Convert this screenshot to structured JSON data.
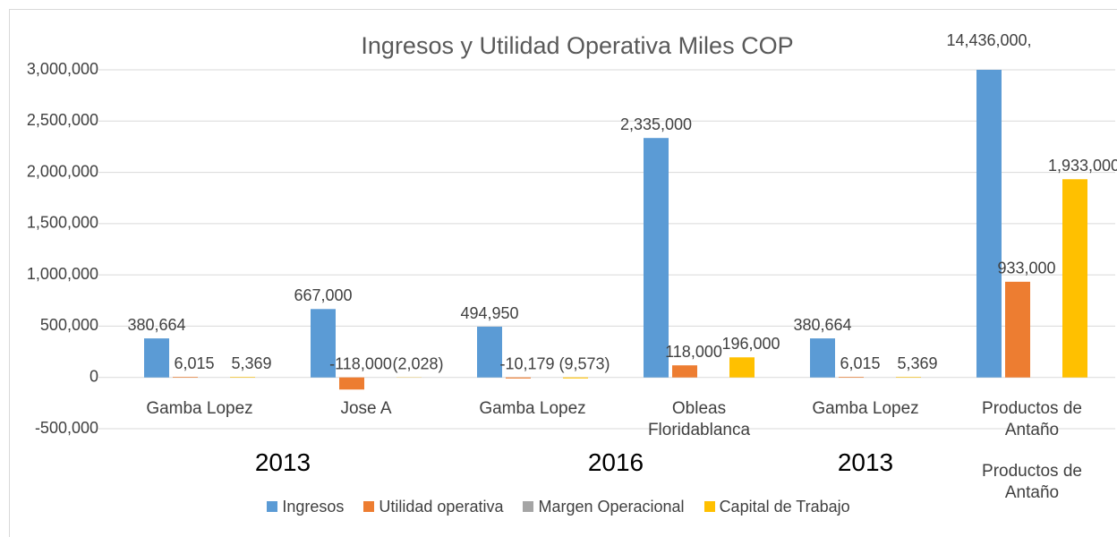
{
  "chart_data": {
    "type": "bar",
    "title": "Ingresos y Utilidad Operativa Miles COP",
    "categories": [
      "Gamba Lopez",
      "Jose A",
      "Gamba Lopez",
      "Obleas Floridablanca",
      "Gamba Lopez",
      "Productos de Antaño"
    ],
    "groups": [
      "2013",
      "2016",
      "2013",
      "Productos de Antaño"
    ],
    "series": [
      {
        "name": "Ingresos",
        "color": "#5b9bd5",
        "values": [
          380664,
          667000,
          494950,
          2335000,
          380664,
          14436000
        ],
        "value_labels": [
          "380,664",
          "667,000",
          "494,950",
          "2,335,000",
          "380,664",
          "14,436,000,"
        ]
      },
      {
        "name": "Utilidad operativa",
        "color": "#ed7d31",
        "values": [
          6015,
          -118000,
          -10179,
          118000,
          6015,
          933000
        ],
        "value_labels": [
          "6,015",
          "-118,000",
          "-10,179",
          "118,000",
          "6,015",
          "933,000"
        ]
      },
      {
        "name": "Margen Operacional",
        "color": "#a5a5a5",
        "values": [
          0,
          0,
          0,
          0,
          0,
          0
        ]
      },
      {
        "name": "Capital de Trabajo",
        "color": "#ffc000",
        "values": [
          5369,
          -2028,
          -9573,
          196000,
          5369,
          1933000
        ],
        "value_labels": [
          "5,369",
          "(2,028)",
          "(9,573)",
          "196,000",
          "5,369",
          "1,933,000"
        ]
      }
    ],
    "ylim": [
      -500000,
      3000000
    ],
    "yticks": [
      {
        "value": -500000,
        "label": "-500,000"
      },
      0,
      {
        "value": 500000,
        "label": "500,000"
      },
      {
        "value": 1000000,
        "label": "1,000,000"
      },
      {
        "value": 1500000,
        "label": "1,500,000"
      },
      {
        "value": 2000000,
        "label": "2,000,000"
      },
      {
        "value": 2500000,
        "label": "2,500,000"
      },
      {
        "value": 3000000,
        "label": "3,000,000"
      }
    ],
    "grid": true,
    "legend": "bottom"
  }
}
